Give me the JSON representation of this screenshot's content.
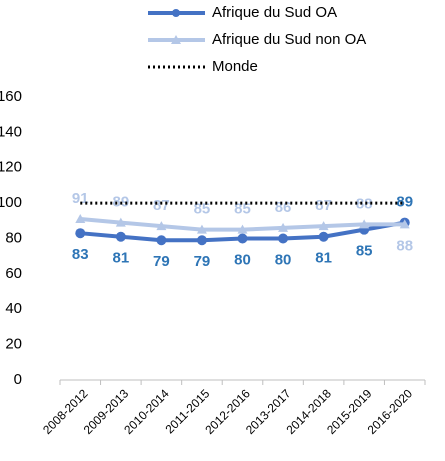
{
  "chart_data": {
    "type": "line",
    "categories": [
      "2008-2012",
      "2009-2013",
      "2010-2014",
      "2011-2015",
      "2012-2016",
      "2013-2017",
      "2014-2018",
      "2015-2019",
      "2016-2020"
    ],
    "series": [
      {
        "name": "Afrique du Sud OA",
        "color": "#4472c4",
        "marker": "circle",
        "values": [
          83,
          81,
          79,
          79,
          80,
          80,
          81,
          85,
          89
        ]
      },
      {
        "name": "Afrique du Sud non OA",
        "color": "#b4c7e7",
        "marker": "triangle",
        "values": [
          91,
          89,
          87,
          85,
          85,
          86,
          87,
          88,
          88
        ]
      },
      {
        "name": "Monde",
        "color": "#000000",
        "dash": "dotted",
        "values": [
          100,
          100,
          100,
          100,
          100,
          100,
          100,
          100,
          100
        ]
      }
    ],
    "ylim": [
      0,
      160
    ],
    "yticks": [
      0,
      20,
      40,
      60,
      80,
      100,
      120,
      140,
      160
    ],
    "grid": false,
    "legend": "top"
  }
}
